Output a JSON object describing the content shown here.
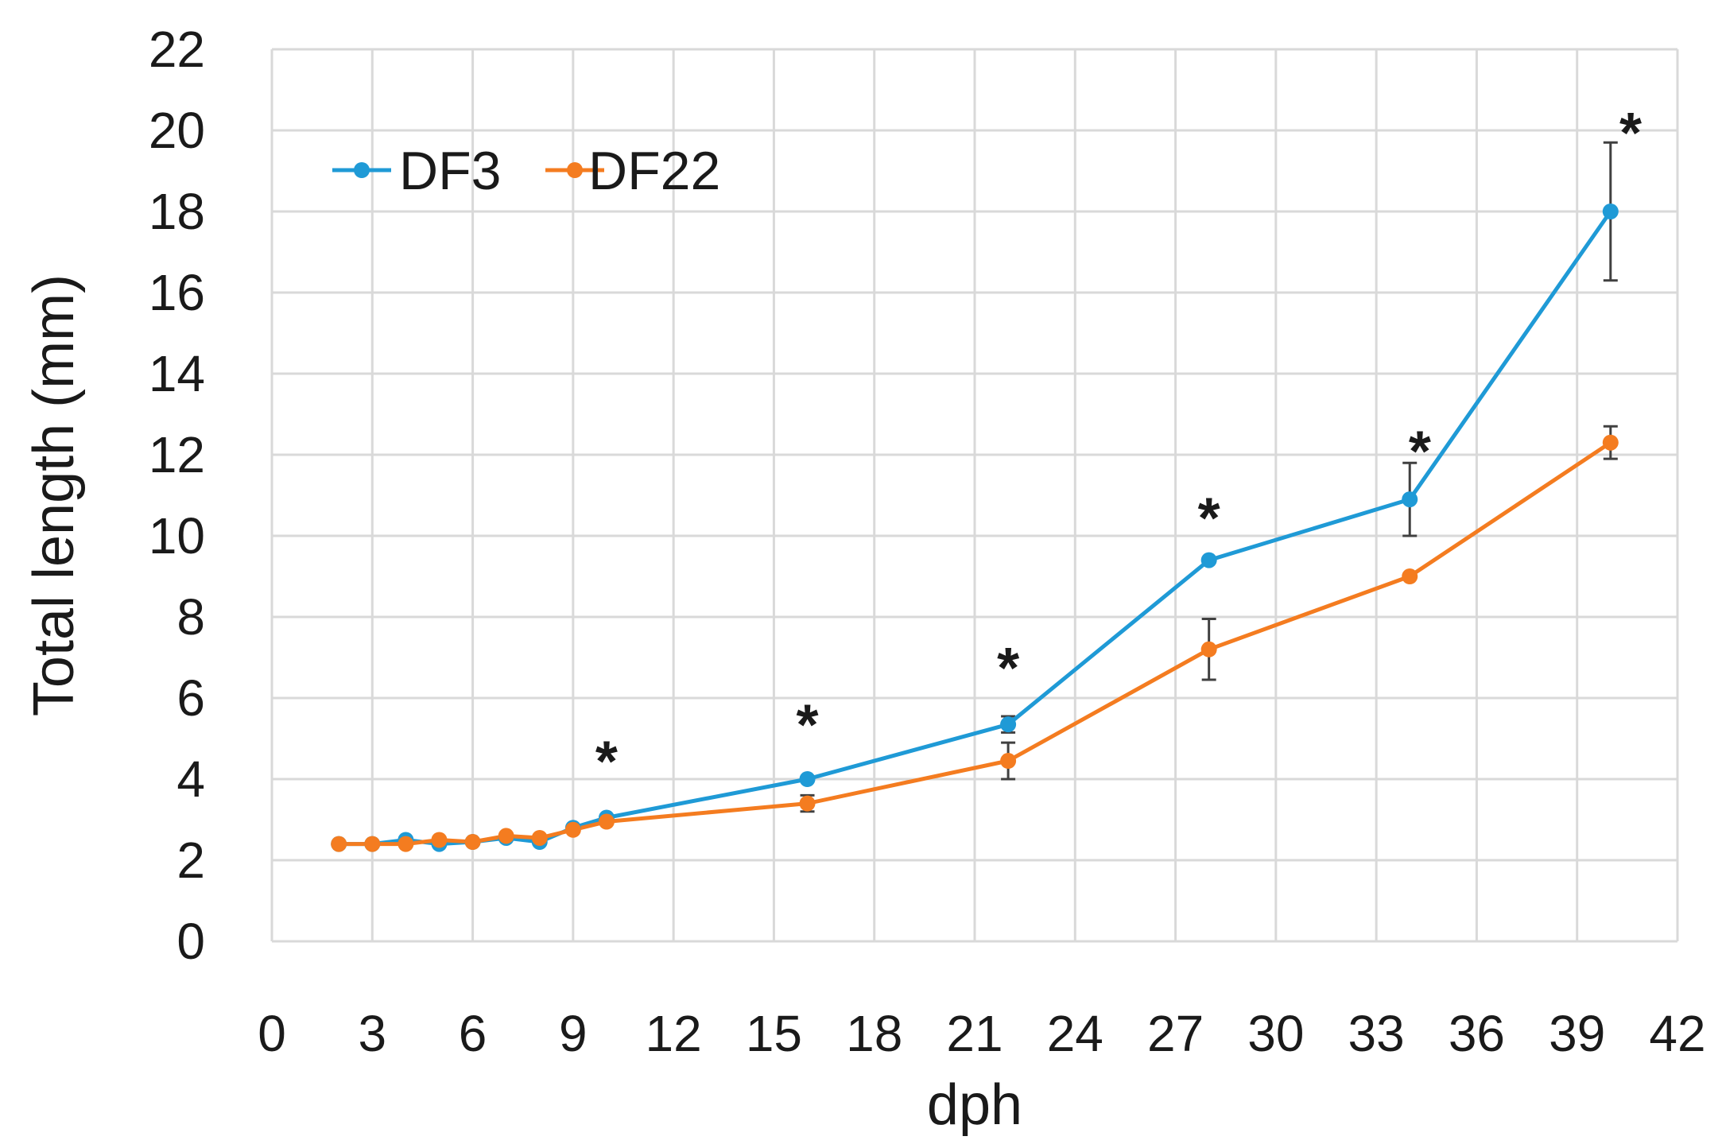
{
  "chart_data": {
    "type": "line",
    "title": "",
    "xlabel": "dph",
    "ylabel": "Total length (mm)",
    "xlim": [
      0,
      42
    ],
    "ylim": [
      0,
      22
    ],
    "xticks": [
      0,
      3,
      6,
      9,
      12,
      15,
      18,
      21,
      24,
      27,
      30,
      33,
      36,
      39,
      42
    ],
    "yticks": [
      0,
      2,
      4,
      6,
      8,
      10,
      12,
      14,
      16,
      18,
      20,
      22
    ],
    "xtick_labels": [
      "0",
      "3",
      "6",
      "9",
      "12",
      "15",
      "18",
      "21",
      "24",
      "27",
      "30",
      "33",
      "36",
      "39",
      "42"
    ],
    "ytick_labels": [
      "0",
      "2",
      "4",
      "6",
      "8",
      "10",
      "12",
      "14",
      "16",
      "18",
      "20",
      "22"
    ],
    "grid": true,
    "legend_position": "top-left",
    "series": [
      {
        "name": "DF3",
        "color": "#1f9ad6",
        "x": [
          2,
          3,
          4,
          5,
          6,
          7,
          8,
          9,
          10,
          16,
          22,
          28,
          34,
          40
        ],
        "y": [
          2.4,
          2.4,
          2.5,
          2.4,
          2.45,
          2.55,
          2.45,
          2.8,
          3.05,
          4.0,
          5.35,
          9.4,
          10.9,
          18.0
        ],
        "err": [
          0,
          0,
          0,
          0,
          0,
          0,
          0,
          0,
          0,
          0,
          0.2,
          0,
          0.9,
          1.7
        ]
      },
      {
        "name": "DF22",
        "color": "#f47c20",
        "x": [
          2,
          3,
          4,
          5,
          6,
          7,
          8,
          9,
          10,
          16,
          22,
          28,
          34,
          40
        ],
        "y": [
          2.4,
          2.4,
          2.4,
          2.5,
          2.45,
          2.6,
          2.55,
          2.75,
          2.95,
          3.4,
          4.45,
          7.2,
          9.0,
          12.3
        ],
        "err": [
          0,
          0,
          0,
          0,
          0,
          0,
          0,
          0,
          0,
          0.2,
          0.45,
          0.75,
          0,
          0.4
        ]
      }
    ],
    "annotations": [
      {
        "text": "*",
        "x": 10,
        "y": 4.5
      },
      {
        "text": "*",
        "x": 16,
        "y": 5.4
      },
      {
        "text": "*",
        "x": 22,
        "y": 6.8
      },
      {
        "text": "*",
        "x": 28,
        "y": 10.5
      },
      {
        "text": "*",
        "x": 34.3,
        "y": 12.15
      },
      {
        "text": "*",
        "x": 40.6,
        "y": 20.0
      }
    ]
  }
}
